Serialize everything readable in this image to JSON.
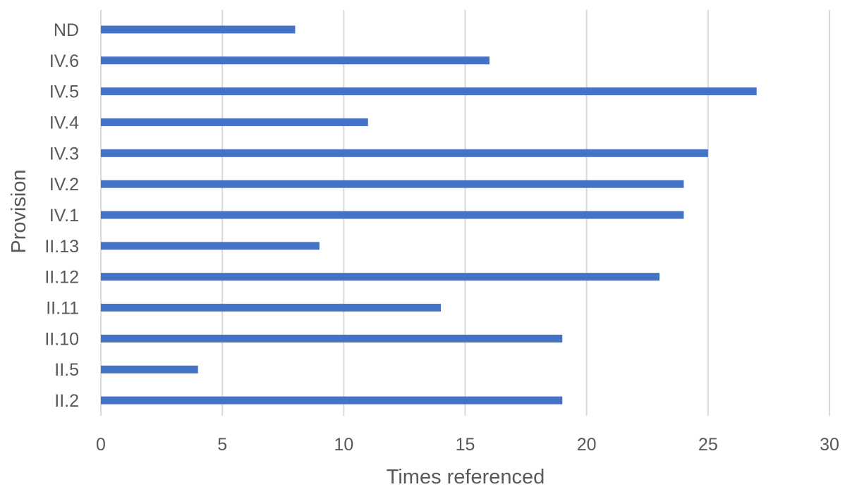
{
  "chart_data": {
    "type": "bar",
    "orientation": "horizontal",
    "title": "",
    "xlabel": "Times referenced",
    "ylabel": "Provision",
    "categories": [
      "ND",
      "IV.6",
      "IV.5",
      "IV.4",
      "IV.3",
      "IV.2",
      "IV.1",
      "II.13",
      "II.12",
      "II.11",
      "II.10",
      "II.5",
      "II.2"
    ],
    "values": [
      8,
      16,
      27,
      11,
      25,
      24,
      24,
      9,
      23,
      14,
      19,
      4,
      19
    ],
    "xlim": [
      0,
      30
    ],
    "xticks": [
      0,
      5,
      10,
      15,
      20,
      25,
      30
    ],
    "grid": "vertical",
    "legend": "none",
    "colors": {
      "bar": "#4472c4",
      "gridline": "#d9d9d9",
      "text": "#595959"
    }
  }
}
